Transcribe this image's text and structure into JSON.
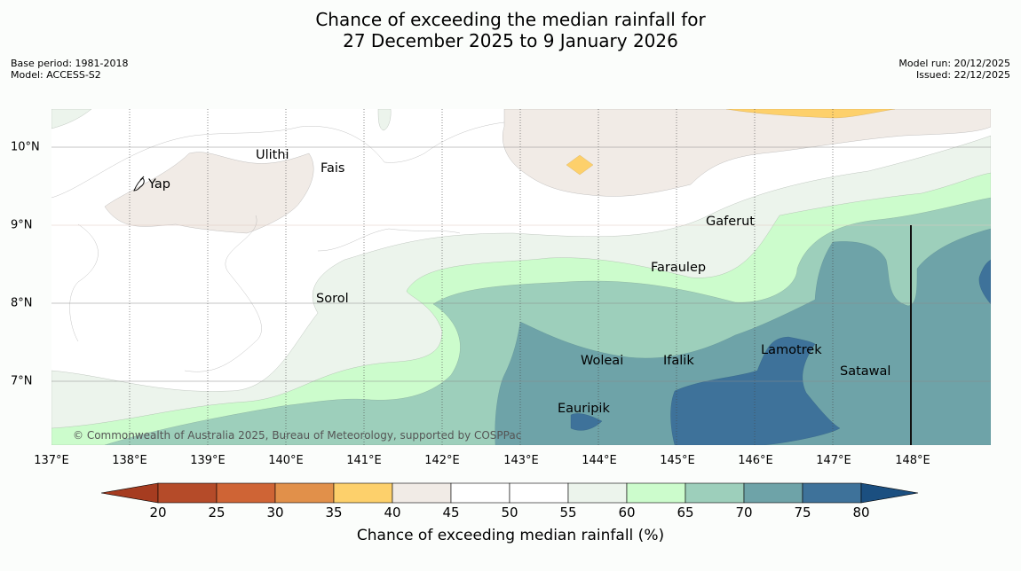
{
  "header": {
    "title_line1": "Chance of exceeding the median rainfall for",
    "title_line2": "27 December 2025 to 9 January 2026",
    "base_period": "Base period: 1981-2018",
    "model": "Model: ACCESS-S2",
    "model_run": "Model run: 20/12/2025",
    "issued": "Issued: 22/12/2025"
  },
  "map": {
    "longitude_labels": [
      "137°E",
      "138°E",
      "139°E",
      "140°E",
      "141°E",
      "142°E",
      "143°E",
      "144°E",
      "145°E",
      "146°E",
      "147°E",
      "148°E"
    ],
    "latitude_labels": [
      "10°N",
      "9°N",
      "8°N",
      "7°N"
    ],
    "places": [
      "Yap",
      "Ulithi",
      "Fais",
      "Gaferut",
      "Faraulep",
      "Sorol",
      "Woleai",
      "Ifalik",
      "Lamotrek",
      "Satawal",
      "Eauripik"
    ],
    "copyright": "© Commonwealth of Australia 2025, Bureau of Meteorology, supported by COSPPac"
  },
  "colorbar": {
    "ticks": [
      "20",
      "25",
      "30",
      "35",
      "40",
      "45",
      "50",
      "55",
      "60",
      "65",
      "70",
      "75",
      "80"
    ],
    "colors": [
      "#a63c20",
      "#b54b29",
      "#cf6435",
      "#e1904a",
      "#fdd06b",
      "#f1ebe6",
      "#ffffff",
      "#ffffff",
      "#ecf4ec",
      "#ccfccc",
      "#9dcfbb",
      "#6ea3a8",
      "#3e729a",
      "#1b4f80"
    ],
    "label": "Chance of exceeding median rainfall (%)"
  }
}
